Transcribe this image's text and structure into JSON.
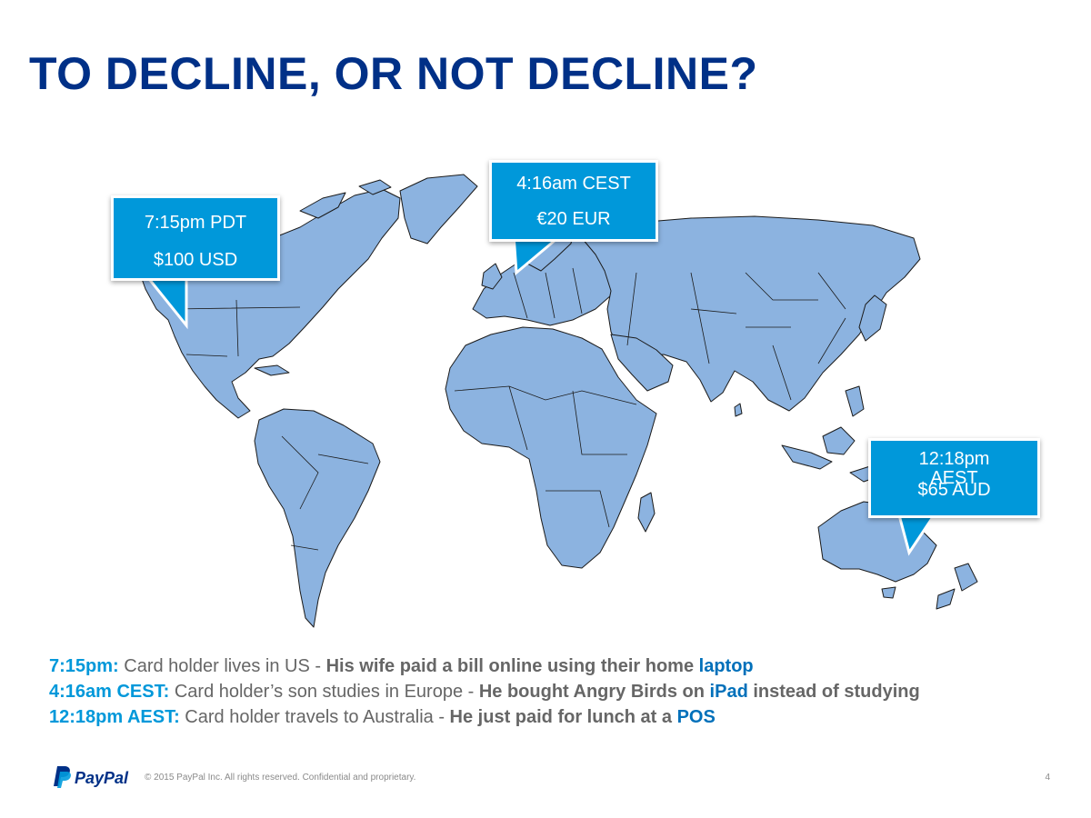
{
  "slide": {
    "title": "TO DECLINE, OR NOT DECLINE?"
  },
  "callouts": {
    "us": {
      "time": "7:15pm PDT",
      "amount": "$100 USD"
    },
    "europe": {
      "time": "4:16am CEST",
      "amount": "€20 EUR"
    },
    "australia": {
      "time_a": "12:18pm",
      "time_b": "AEST",
      "amount": "$65 AUD"
    }
  },
  "notes": [
    {
      "lead": "7:15pm:",
      "text": " Card holder lives in US - ",
      "strong": "His wife paid a bill online using their home ",
      "accent": "laptop",
      "tail": ""
    },
    {
      "lead": "4:16am CEST:",
      "text": " Card holder’s son studies in Europe - ",
      "strong": "He bought Angry Birds on ",
      "accent": "iPad",
      "tail": " instead of studying"
    },
    {
      "lead": "12:18pm AEST:",
      "text": " Card holder travels to Australia - ",
      "strong": "He just paid for lunch at a ",
      "accent": "POS",
      "tail": ""
    }
  ],
  "footer": {
    "logo_text": "PayPal",
    "copyright": "© 2015 PayPal Inc. All rights reserved. Confidential and proprietary.",
    "page_number": "4"
  },
  "colors": {
    "title": "#003087",
    "callout": "#0098da",
    "land": "#8cb3e0",
    "border": "#1b1b1b",
    "accent": "#0070ba"
  }
}
